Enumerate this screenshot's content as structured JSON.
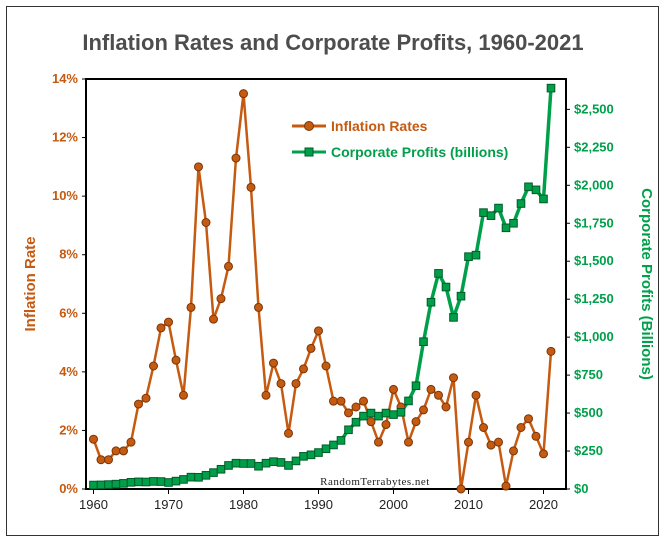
{
  "chart_data": {
    "type": "line",
    "title": "Inflation Rates and Corporate Profits, 1960-2021",
    "ylabel_left": "Inflation Rate",
    "ylabel_right": "Corporate Profits (Billions)",
    "watermark": "RandomTerrabytes.net",
    "x": [
      1960,
      1961,
      1962,
      1963,
      1964,
      1965,
      1966,
      1967,
      1968,
      1969,
      1970,
      1971,
      1972,
      1973,
      1974,
      1975,
      1976,
      1977,
      1978,
      1979,
      1980,
      1981,
      1982,
      1983,
      1984,
      1985,
      1986,
      1987,
      1988,
      1989,
      1990,
      1991,
      1992,
      1993,
      1994,
      1995,
      1996,
      1997,
      1998,
      1999,
      2000,
      2001,
      2002,
      2003,
      2004,
      2005,
      2006,
      2007,
      2008,
      2009,
      2010,
      2011,
      2012,
      2013,
      2014,
      2015,
      2016,
      2017,
      2018,
      2019,
      2020,
      2021
    ],
    "xlim": [
      1959,
      2023
    ],
    "x_ticks": [
      "1960",
      "1970",
      "1980",
      "1990",
      "2000",
      "2010",
      "2020"
    ],
    "x_tick_values": [
      1960,
      1970,
      1980,
      1990,
      2000,
      2010,
      2020
    ],
    "series": [
      {
        "name": "Inflation Rates",
        "axis": "left",
        "color": "#c55a11",
        "marker": "circle",
        "values": [
          1.7,
          1.0,
          1.0,
          1.3,
          1.3,
          1.6,
          2.9,
          3.1,
          4.2,
          5.5,
          5.7,
          4.4,
          3.2,
          6.2,
          11.0,
          9.1,
          5.8,
          6.5,
          7.6,
          11.3,
          13.5,
          10.3,
          6.2,
          3.2,
          4.3,
          3.6,
          1.9,
          3.6,
          4.1,
          4.8,
          5.4,
          4.2,
          3.0,
          3.0,
          2.6,
          2.8,
          3.0,
          2.3,
          1.6,
          2.2,
          3.4,
          2.8,
          1.6,
          2.3,
          2.7,
          3.4,
          3.2,
          2.8,
          3.8,
          -0.4,
          1.6,
          3.2,
          2.1,
          1.5,
          1.6,
          0.1,
          1.3,
          2.1,
          2.4,
          1.8,
          1.2,
          4.7
        ]
      },
      {
        "name": "Corporate Profits (billions)",
        "axis": "right",
        "color": "#00a04a",
        "marker": "square",
        "values": [
          26,
          27,
          29,
          32,
          37,
          44,
          47,
          46,
          50,
          49,
          43,
          52,
          63,
          78,
          77,
          90,
          108,
          130,
          155,
          170,
          168,
          168,
          150,
          170,
          180,
          175,
          155,
          185,
          215,
          225,
          240,
          265,
          290,
          320,
          390,
          440,
          480,
          500,
          480,
          500,
          490,
          505,
          580,
          680,
          970,
          1230,
          1420,
          1330,
          1130,
          1270,
          1530,
          1540,
          1820,
          1800,
          1850,
          1720,
          1750,
          1880,
          1990,
          1970,
          1910,
          2640
        ]
      }
    ],
    "ylim_left": [
      0,
      14
    ],
    "y_ticks_left": [
      "0%",
      "2%",
      "4%",
      "6%",
      "8%",
      "10%",
      "12%",
      "14%"
    ],
    "y_tick_values_left": [
      0,
      2,
      4,
      6,
      8,
      10,
      12,
      14
    ],
    "ylim_right": [
      0,
      2700
    ],
    "y_ticks_right": [
      "$0",
      "$250",
      "$500",
      "$750",
      "$1,000",
      "$1,250",
      "$1,500",
      "$1,750",
      "$2,000",
      "$2,250",
      "$2,500"
    ],
    "y_tick_values_right": [
      0,
      250,
      500,
      750,
      1000,
      1250,
      1500,
      1750,
      2000,
      2250,
      2500
    ],
    "grid": false,
    "legend_position": "top-center"
  }
}
